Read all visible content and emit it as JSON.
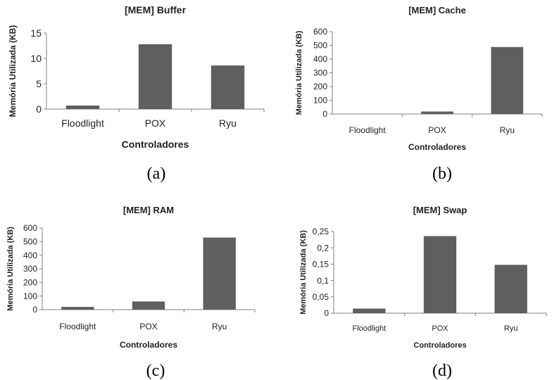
{
  "chart_data": [
    {
      "type": "bar",
      "title": "[MEM] Buffer",
      "xlabel": "Controladores",
      "ylabel": "Memória Utilizada (KB)",
      "categories": [
        "Floodlight",
        "POX",
        "Ryu"
      ],
      "values": [
        0.7,
        12.8,
        8.6
      ],
      "ylim": [
        0,
        15
      ],
      "yticks": [
        "0",
        "5",
        "10",
        "15"
      ],
      "bar_color": "#5f5f5f",
      "caption": "(a)"
    },
    {
      "type": "bar",
      "title": "[MEM] Cache",
      "xlabel": "Controladores",
      "ylabel": "Memória Utilizada (KB)",
      "categories": [
        "Floodlight",
        "POX",
        "Ryu"
      ],
      "values": [
        0,
        18,
        488
      ],
      "ylim": [
        0,
        600
      ],
      "yticks": [
        "0",
        "100",
        "200",
        "300",
        "400",
        "500",
        "600"
      ],
      "bar_color": "#5f5f5f",
      "caption": "(b)"
    },
    {
      "type": "bar",
      "title": "[MEM] RAM",
      "xlabel": "Controladores",
      "ylabel": "Memória Utilizada (KB)",
      "categories": [
        "Floodlight",
        "POX",
        "Ryu"
      ],
      "values": [
        20,
        60,
        530
      ],
      "ylim": [
        0,
        600
      ],
      "yticks": [
        "0",
        "100",
        "200",
        "300",
        "400",
        "500",
        "600"
      ],
      "bar_color": "#5f5f5f",
      "caption": "(c)"
    },
    {
      "type": "bar",
      "title": "[MEM] Swap",
      "xlabel": "Controladores",
      "ylabel": "Memória Utilizada (KB)",
      "categories": [
        "Floodlight",
        "POX",
        "Ryu"
      ],
      "values": [
        0.014,
        0.236,
        0.148
      ],
      "ylim": [
        0,
        0.25
      ],
      "yticks": [
        "0",
        "0,05",
        "0,1",
        "0,15",
        "0,2",
        "0,25"
      ],
      "bar_color": "#5f5f5f",
      "caption": "(d)"
    }
  ]
}
